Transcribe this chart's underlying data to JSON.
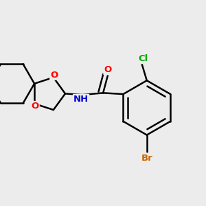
{
  "bg_color": "#ececec",
  "atom_colors": {
    "O": "#ff0000",
    "N": "#0000cc",
    "Br": "#cc6600",
    "Cl": "#00aa00"
  },
  "bond_color": "#000000",
  "bond_width": 1.8,
  "font_size": 9.5,
  "fig_size": [
    3.0,
    3.0
  ],
  "dpi": 100
}
